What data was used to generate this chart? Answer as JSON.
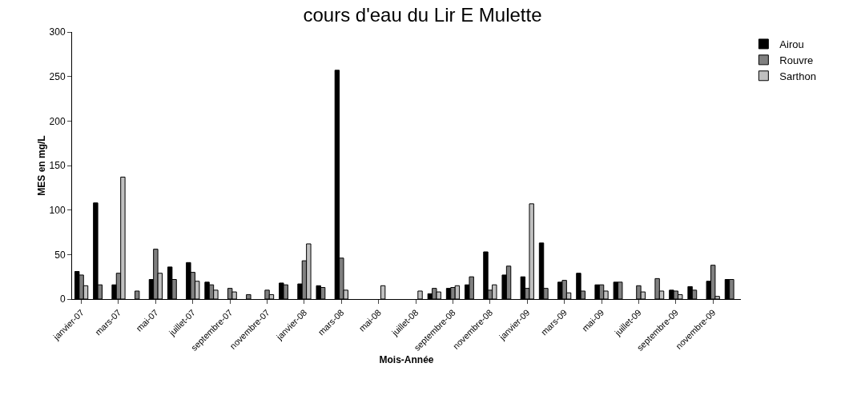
{
  "chart_data": {
    "type": "bar",
    "title": "cours d'eau du Lir E Mulette",
    "xlabel": "Mois-Année",
    "ylabel": "MES en mg/L",
    "categories": [
      "janvier-07",
      null,
      "mars-07",
      null,
      "mai-07",
      null,
      "juillet-07",
      null,
      "septembre-07",
      null,
      "novembre-07",
      null,
      "janvier-08",
      null,
      "mars-08",
      null,
      "mai-08",
      null,
      "juillet-08",
      null,
      "septembre-08",
      null,
      "novembre-08",
      null,
      "janvier-09",
      null,
      "mars-09",
      null,
      "mai-09",
      null,
      "juillet-09",
      null,
      "septembre-09",
      null,
      "novembre-09",
      null
    ],
    "series": [
      {
        "name": "Airou",
        "color": "#000000",
        "values": [
          31,
          108,
          16,
          null,
          22,
          36,
          41,
          19,
          null,
          null,
          null,
          18,
          17,
          15,
          257,
          null,
          null,
          null,
          null,
          6,
          12,
          16,
          53,
          27,
          25,
          63,
          19,
          29,
          16,
          19,
          null,
          null,
          10,
          14,
          20,
          22
        ]
      },
      {
        "name": "Rouvre",
        "color": "#808080",
        "values": [
          27,
          16,
          29,
          9,
          56,
          22,
          30,
          16,
          12,
          5,
          10,
          16,
          43,
          13,
          46,
          null,
          null,
          null,
          null,
          12,
          13,
          25,
          10,
          37,
          12,
          12,
          21,
          9,
          16,
          19,
          15,
          23,
          9,
          10,
          38,
          22
        ]
      },
      {
        "name": "Sarthon",
        "color": "#c0c0c0",
        "values": [
          15,
          null,
          137,
          null,
          29,
          null,
          20,
          10,
          8,
          null,
          5,
          null,
          62,
          null,
          10,
          null,
          15,
          null,
          9,
          8,
          15,
          null,
          16,
          null,
          107,
          null,
          7,
          null,
          9,
          null,
          8,
          9,
          5,
          null,
          3,
          null
        ]
      }
    ],
    "ylim": [
      0,
      300
    ],
    "yticks": [
      0,
      50,
      100,
      150,
      200,
      250,
      300
    ],
    "grid": false,
    "legend": "top right"
  }
}
